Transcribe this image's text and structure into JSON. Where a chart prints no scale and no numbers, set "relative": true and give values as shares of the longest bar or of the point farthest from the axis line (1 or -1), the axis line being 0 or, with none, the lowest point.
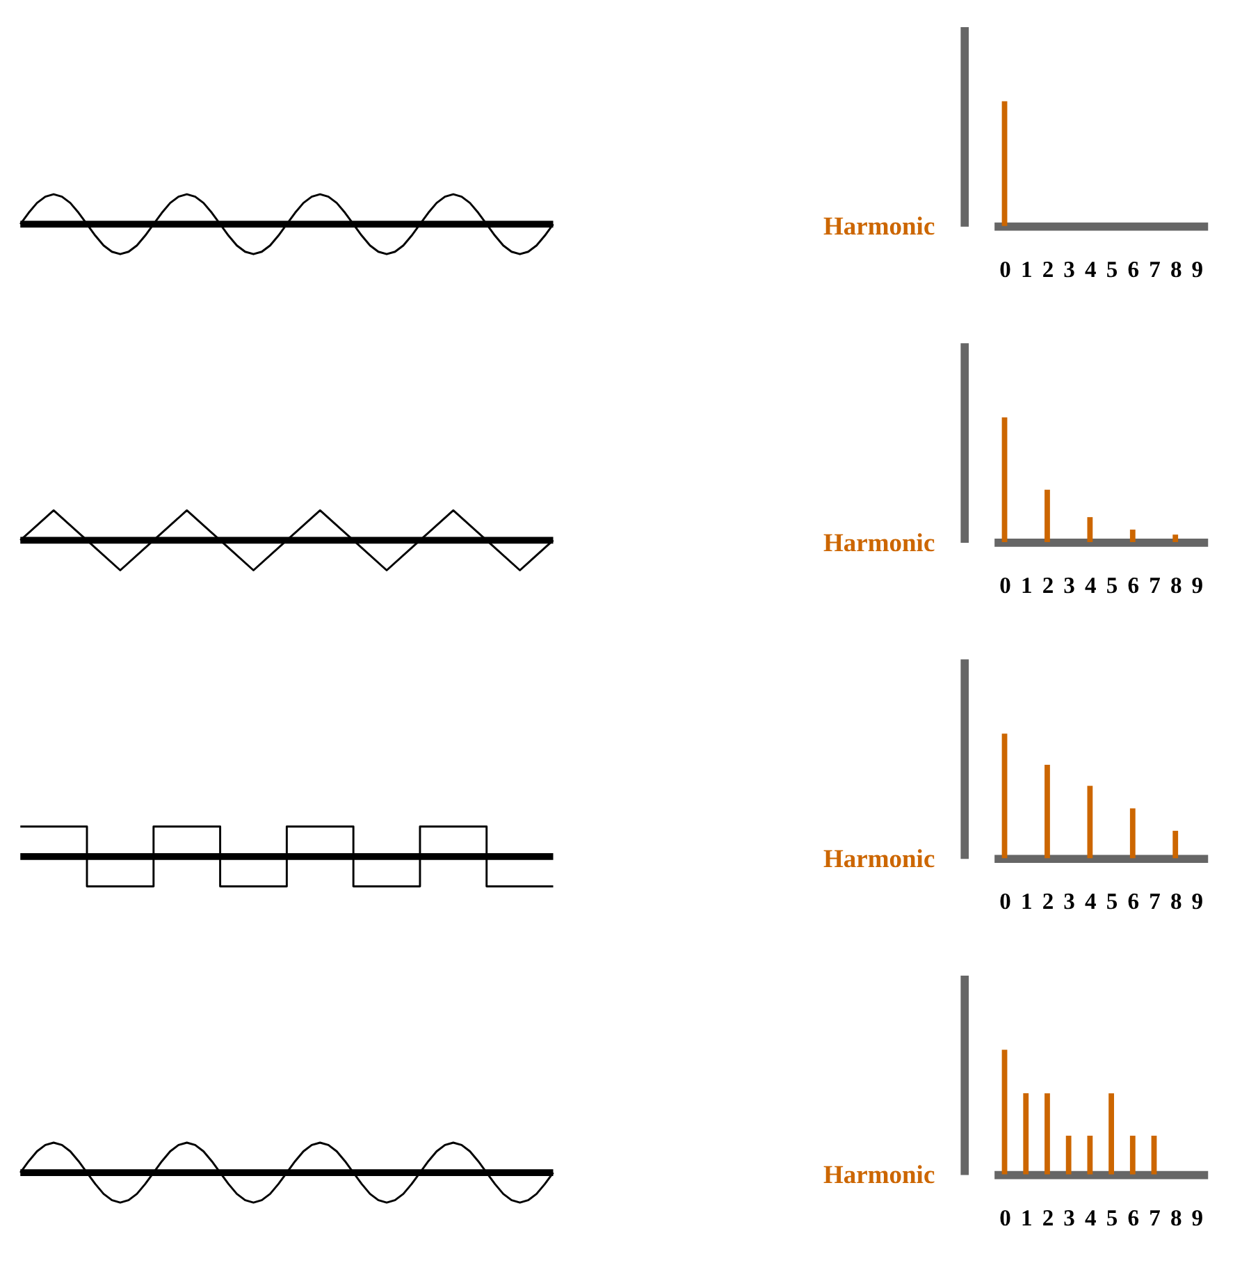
{
  "chart_data": [
    {
      "type": "line",
      "relative": true,
      "tick_labels": false,
      "color": "#000000",
      "categories": [
        null,
        null,
        null,
        null,
        null,
        null,
        null,
        null,
        null,
        null,
        null,
        null,
        null,
        null,
        null,
        null,
        null,
        null,
        null,
        null,
        null,
        null,
        null,
        null,
        null,
        null,
        null,
        null,
        null,
        null,
        null,
        null,
        null,
        null,
        null,
        null,
        null,
        null,
        null,
        null,
        null,
        null,
        null,
        null,
        null,
        null,
        null,
        null,
        null,
        null,
        null,
        null,
        null,
        null,
        null,
        null,
        null,
        null,
        null,
        null,
        null,
        null,
        null,
        null,
        null
      ],
      "values": [
        0,
        0.38,
        0.71,
        0.92,
        1,
        0.92,
        0.71,
        0.38,
        0,
        -0.38,
        -0.71,
        -0.92,
        -1,
        -0.92,
        -0.71,
        -0.38,
        0,
        0.38,
        0.71,
        0.92,
        1,
        0.92,
        0.71,
        0.38,
        0,
        -0.38,
        -0.71,
        -0.92,
        -1,
        -0.92,
        -0.71,
        -0.38,
        0,
        0.38,
        0.71,
        0.92,
        1,
        0.92,
        0.71,
        0.38,
        0,
        -0.38,
        -0.71,
        -0.92,
        -1,
        -0.92,
        -0.71,
        -0.38,
        0,
        0.38,
        0.71,
        0.92,
        1,
        0.92,
        0.71,
        0.38,
        0,
        -0.38,
        -0.71,
        -0.92,
        -1,
        -0.92,
        -0.71,
        -0.38,
        0
      ],
      "ref_lines": [
        {
          "axis": "y",
          "value": 0,
          "color": "#000000"
        }
      ]
    },
    {
      "type": "bar",
      "relative": true,
      "tick_labels": "x",
      "ylabel": "Harmonic",
      "color": "#cc6600",
      "categories": [
        "0",
        "1",
        "2",
        "3",
        "4",
        "5",
        "6",
        "7",
        "8",
        "9"
      ],
      "values": [
        1,
        0,
        0,
        0,
        0,
        0,
        0,
        0,
        0,
        0
      ]
    },
    {
      "type": "line",
      "relative": true,
      "tick_labels": false,
      "color": "#000000",
      "categories": [
        null,
        null,
        null,
        null,
        null,
        null,
        null,
        null,
        null,
        null,
        null,
        null,
        null,
        null,
        null,
        null,
        null
      ],
      "values": [
        0,
        1,
        0,
        -1,
        0,
        1,
        0,
        -1,
        0,
        1,
        0,
        -1,
        0,
        1,
        0,
        -1,
        0
      ],
      "ref_lines": [
        {
          "axis": "y",
          "value": 0,
          "color": "#000000"
        }
      ]
    },
    {
      "type": "bar",
      "relative": true,
      "tick_labels": "x",
      "ylabel": "Harmonic",
      "color": "#cc6600",
      "categories": [
        "0",
        "1",
        "2",
        "3",
        "4",
        "5",
        "6",
        "7",
        "8",
        "9"
      ],
      "values": [
        1,
        0,
        0.42,
        0,
        0.2,
        0,
        0.1,
        0,
        0.06,
        0
      ]
    },
    {
      "type": "step",
      "relative": true,
      "tick_labels": false,
      "color": "#000000",
      "categories": [
        null,
        null,
        null,
        null,
        null,
        null,
        null,
        null,
        null
      ],
      "values": [
        1,
        -1,
        1,
        -1,
        1,
        -1,
        1,
        -1,
        -1
      ],
      "ref_lines": [
        {
          "axis": "y",
          "value": 0,
          "color": "#000000"
        }
      ]
    },
    {
      "type": "bar",
      "relative": true,
      "tick_labels": "x",
      "ylabel": "Harmonic",
      "color": "#cc6600",
      "categories": [
        "0",
        "1",
        "2",
        "3",
        "4",
        "5",
        "6",
        "7",
        "8",
        "9"
      ],
      "values": [
        1,
        0,
        0.75,
        0,
        0.58,
        0,
        0.4,
        0,
        0.22,
        0
      ]
    },
    {
      "type": "line",
      "relative": true,
      "tick_labels": false,
      "color": "#000000",
      "categories": [
        null,
        null,
        null,
        null,
        null,
        null,
        null,
        null,
        null,
        null,
        null,
        null,
        null,
        null,
        null,
        null,
        null,
        null,
        null,
        null,
        null,
        null,
        null,
        null,
        null,
        null,
        null,
        null,
        null,
        null,
        null,
        null,
        null,
        null,
        null,
        null,
        null,
        null,
        null,
        null,
        null,
        null,
        null,
        null,
        null,
        null,
        null,
        null,
        null,
        null,
        null,
        null,
        null,
        null,
        null,
        null,
        null,
        null,
        null,
        null,
        null,
        null,
        null,
        null,
        null
      ],
      "values": [
        0,
        0.38,
        0.71,
        0.92,
        1,
        0.92,
        0.71,
        0.38,
        0,
        -0.38,
        -0.71,
        -0.92,
        -1,
        -0.92,
        -0.71,
        -0.38,
        0,
        0.38,
        0.71,
        0.92,
        1,
        0.92,
        0.71,
        0.38,
        0,
        -0.38,
        -0.71,
        -0.92,
        -1,
        -0.92,
        -0.71,
        -0.38,
        0,
        0.38,
        0.71,
        0.92,
        1,
        0.92,
        0.71,
        0.38,
        0,
        -0.38,
        -0.71,
        -0.92,
        -1,
        -0.92,
        -0.71,
        -0.38,
        0,
        0.38,
        0.71,
        0.92,
        1,
        0.92,
        0.71,
        0.38,
        0,
        -0.38,
        -0.71,
        -0.92,
        -1,
        -0.92,
        -0.71,
        -0.38,
        0
      ],
      "ref_lines": [
        {
          "axis": "y",
          "value": 0,
          "color": "#000000"
        }
      ]
    },
    {
      "type": "bar",
      "relative": true,
      "tick_labels": "x",
      "ylabel": "Harmonic",
      "color": "#cc6600",
      "categories": [
        "0",
        "1",
        "2",
        "3",
        "4",
        "5",
        "6",
        "7",
        "8",
        "9"
      ],
      "values": [
        1,
        0.65,
        0.65,
        0.31,
        0.31,
        0.65,
        0.31,
        0.31,
        0,
        0
      ]
    }
  ]
}
